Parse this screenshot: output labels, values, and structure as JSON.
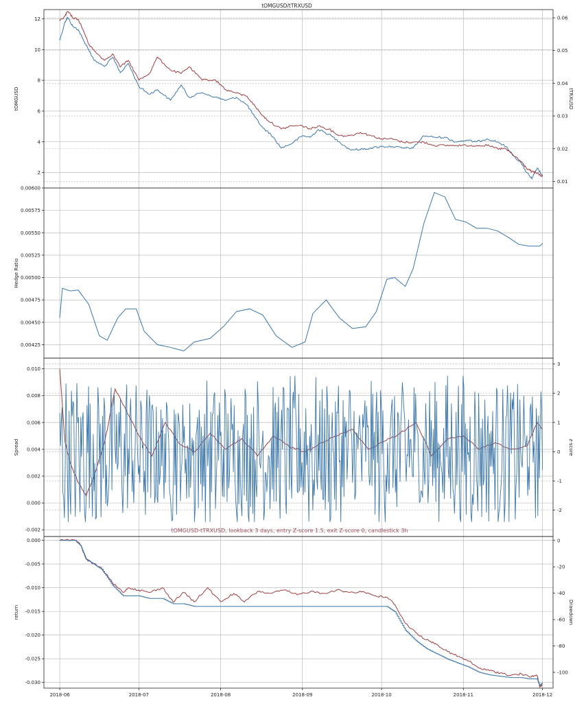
{
  "figure_title": "tOMGUSD/tTRXUSD",
  "colors": {
    "blue": "#3b76a8",
    "red": "#9e3d40",
    "grid": "#b0b0b0"
  },
  "chart_data": [
    {
      "type": "line",
      "title": "tOMGUSD/tTRXUSD",
      "x_range": [
        "2018-06-01",
        "2018-12-01"
      ],
      "xticks": [
        "2018-06",
        "2018-07",
        "2018-08",
        "2018-09",
        "2018-10",
        "2018-11",
        "2018-12"
      ],
      "ylabel": "tOMGUSD",
      "ylabel_right": "tTRXUSD",
      "ylim": [
        1.0,
        12.6
      ],
      "ylim_right": [
        0.008,
        0.0625
      ],
      "yticks": [
        "2",
        "4",
        "6",
        "8",
        "10",
        "12"
      ],
      "yticks_right": [
        "0.01",
        "0.02",
        "0.03",
        "0.04",
        "0.05",
        "0.06"
      ],
      "series": [
        {
          "name": "tOMGUSD",
          "axis": "left",
          "color": "blue",
          "x": [
            "2018-06-01",
            "2018-06-03",
            "2018-06-04",
            "2018-06-06",
            "2018-06-08",
            "2018-06-10",
            "2018-06-12",
            "2018-06-14",
            "2018-06-18",
            "2018-06-21",
            "2018-06-24",
            "2018-06-27",
            "2018-07-01",
            "2018-07-05",
            "2018-07-08",
            "2018-07-13",
            "2018-07-17",
            "2018-07-20",
            "2018-07-25",
            "2018-07-30",
            "2018-08-03",
            "2018-08-07",
            "2018-08-11",
            "2018-08-14",
            "2018-08-17",
            "2018-08-20",
            "2018-08-24",
            "2018-08-28",
            "2018-09-01",
            "2018-09-04",
            "2018-09-07",
            "2018-09-11",
            "2018-09-15",
            "2018-09-19",
            "2018-09-23",
            "2018-09-27",
            "2018-10-01",
            "2018-10-05",
            "2018-10-09",
            "2018-10-13",
            "2018-10-17",
            "2018-10-21",
            "2018-10-25",
            "2018-10-29",
            "2018-11-02",
            "2018-11-06",
            "2018-11-10",
            "2018-11-14",
            "2018-11-17",
            "2018-11-20",
            "2018-11-23",
            "2018-11-25",
            "2018-11-27",
            "2018-11-29",
            "2018-12-01"
          ],
          "y": [
            10.6,
            11.8,
            12.1,
            11.5,
            11.3,
            10.6,
            10.0,
            9.3,
            8.9,
            9.5,
            8.5,
            9.1,
            7.6,
            7.1,
            7.4,
            6.7,
            7.7,
            6.9,
            7.2,
            6.9,
            6.7,
            6.9,
            6.4,
            5.6,
            4.9,
            4.5,
            3.6,
            3.9,
            4.4,
            4.3,
            4.8,
            4.5,
            4.0,
            3.5,
            3.5,
            3.6,
            3.7,
            3.7,
            3.6,
            3.6,
            4.4,
            4.3,
            4.3,
            4.0,
            4.1,
            4.0,
            4.2,
            4.0,
            3.7,
            3.1,
            2.6,
            2.0,
            1.6,
            2.3,
            1.8
          ]
        },
        {
          "name": "tTRXUSD",
          "axis": "right",
          "color": "red",
          "x": [
            "2018-06-01",
            "2018-06-03",
            "2018-06-04",
            "2018-06-06",
            "2018-06-08",
            "2018-06-10",
            "2018-06-12",
            "2018-06-14",
            "2018-06-18",
            "2018-06-21",
            "2018-06-24",
            "2018-06-27",
            "2018-07-01",
            "2018-07-05",
            "2018-07-08",
            "2018-07-13",
            "2018-07-17",
            "2018-07-20",
            "2018-07-25",
            "2018-07-30",
            "2018-08-03",
            "2018-08-07",
            "2018-08-11",
            "2018-08-14",
            "2018-08-17",
            "2018-08-20",
            "2018-08-24",
            "2018-08-28",
            "2018-09-01",
            "2018-09-04",
            "2018-09-07",
            "2018-09-11",
            "2018-09-15",
            "2018-09-19",
            "2018-09-23",
            "2018-09-27",
            "2018-10-01",
            "2018-10-05",
            "2018-10-09",
            "2018-10-13",
            "2018-10-17",
            "2018-10-21",
            "2018-10-25",
            "2018-10-29",
            "2018-11-02",
            "2018-11-06",
            "2018-11-10",
            "2018-11-14",
            "2018-11-17",
            "2018-11-20",
            "2018-11-23",
            "2018-11-25",
            "2018-11-27",
            "2018-11-29",
            "2018-12-01"
          ],
          "y": [
            0.059,
            0.0605,
            0.062,
            0.06,
            0.0595,
            0.056,
            0.052,
            0.05,
            0.047,
            0.049,
            0.045,
            0.047,
            0.041,
            0.043,
            0.048,
            0.044,
            0.043,
            0.045,
            0.041,
            0.041,
            0.038,
            0.037,
            0.036,
            0.033,
            0.03,
            0.028,
            0.026,
            0.027,
            0.027,
            0.026,
            0.027,
            0.026,
            0.024,
            0.024,
            0.025,
            0.024,
            0.023,
            0.023,
            0.022,
            0.022,
            0.022,
            0.021,
            0.021,
            0.021,
            0.021,
            0.021,
            0.021,
            0.02,
            0.02,
            0.018,
            0.016,
            0.014,
            0.013,
            0.0125,
            0.0115
          ]
        }
      ]
    },
    {
      "type": "line",
      "ylabel": "Hedge Ratio",
      "ylim": [
        0.0041,
        0.006
      ],
      "yticks": [
        "0.00425",
        "0.00450",
        "0.00475",
        "0.00500",
        "0.00525",
        "0.00550",
        "0.00575",
        "0.00600"
      ],
      "series": [
        {
          "color": "blue",
          "x": [
            "2018-06-01",
            "2018-06-02",
            "2018-06-05",
            "2018-06-08",
            "2018-06-12",
            "2018-06-16",
            "2018-06-19",
            "2018-06-23",
            "2018-06-26",
            "2018-06-30",
            "2018-07-03",
            "2018-07-08",
            "2018-07-13",
            "2018-07-18",
            "2018-07-22",
            "2018-07-28",
            "2018-08-02",
            "2018-08-07",
            "2018-08-12",
            "2018-08-17",
            "2018-08-22",
            "2018-08-28",
            "2018-09-02",
            "2018-09-05",
            "2018-09-10",
            "2018-09-15",
            "2018-09-20",
            "2018-09-25",
            "2018-09-29",
            "2018-10-03",
            "2018-10-06",
            "2018-10-10",
            "2018-10-13",
            "2018-10-17",
            "2018-10-21",
            "2018-10-25",
            "2018-10-29",
            "2018-11-02",
            "2018-11-06",
            "2018-11-10",
            "2018-11-14",
            "2018-11-18",
            "2018-11-22",
            "2018-11-26",
            "2018-11-30",
            "2018-12-01"
          ],
          "y": [
            0.00455,
            0.00488,
            0.00485,
            0.00486,
            0.0047,
            0.00435,
            0.0043,
            0.00455,
            0.00465,
            0.00465,
            0.0044,
            0.00425,
            0.00422,
            0.00418,
            0.00428,
            0.00432,
            0.00445,
            0.00462,
            0.00465,
            0.00458,
            0.00435,
            0.00422,
            0.00428,
            0.0046,
            0.00475,
            0.00455,
            0.00443,
            0.00445,
            0.00462,
            0.00498,
            0.005,
            0.0049,
            0.0051,
            0.0056,
            0.00595,
            0.0059,
            0.00565,
            0.00562,
            0.00555,
            0.00555,
            0.00552,
            0.00545,
            0.00537,
            0.00535,
            0.00535,
            0.00538
          ]
        }
      ]
    },
    {
      "type": "line",
      "ylabel": "Spread",
      "ylabel_right": "z-score",
      "ylim": [
        -0.0025,
        0.0108
      ],
      "ylim_right": [
        -2.9,
        3.2
      ],
      "yticks": [
        "-0.002",
        "0.000",
        "0.002",
        "0.004",
        "0.006",
        "0.008",
        "0.010"
      ],
      "yticks_right": [
        "-2",
        "-1",
        "0",
        "1",
        "2",
        "3"
      ],
      "series": [
        {
          "name": "Spread",
          "axis": "left",
          "color": "red",
          "x": [
            "2018-06-01",
            "2018-06-03",
            "2018-06-05",
            "2018-06-08",
            "2018-06-11",
            "2018-06-14",
            "2018-06-18",
            "2018-06-22",
            "2018-06-26",
            "2018-07-01",
            "2018-07-06",
            "2018-07-11",
            "2018-07-16",
            "2018-07-22",
            "2018-07-28",
            "2018-08-03",
            "2018-08-09",
            "2018-08-15",
            "2018-08-21",
            "2018-08-27",
            "2018-09-02",
            "2018-09-08",
            "2018-09-14",
            "2018-09-20",
            "2018-09-26",
            "2018-10-02",
            "2018-10-08",
            "2018-10-14",
            "2018-10-20",
            "2018-10-26",
            "2018-11-01",
            "2018-11-07",
            "2018-11-13",
            "2018-11-19",
            "2018-11-25",
            "2018-11-29",
            "2018-12-01"
          ],
          "y": [
            0.01,
            0.0045,
            0.003,
            0.0015,
            0.0005,
            0.002,
            0.0045,
            0.0085,
            0.007,
            0.005,
            0.0035,
            0.006,
            0.0045,
            0.0038,
            0.0052,
            0.004,
            0.0048,
            0.0035,
            0.005,
            0.0042,
            0.0038,
            0.0045,
            0.005,
            0.0055,
            0.004,
            0.0046,
            0.0052,
            0.006,
            0.0035,
            0.0048,
            0.005,
            0.004,
            0.0045,
            0.004,
            0.0042,
            0.006,
            0.0055
          ]
        },
        {
          "name": "z-score",
          "axis": "right",
          "color": "blue",
          "display": "oscillating series, range approx -2.4 to 2.6",
          "x": [
            "2018-06-01",
            "2018-12-01"
          ],
          "y": [
            1.5,
            -1.2
          ]
        }
      ]
    },
    {
      "type": "line",
      "title": "tOMGUSD-tTRXUSD, lookback  3 days, entry Z-score  1.5, exit Z-score  0, candlestick  3h",
      "ylabel": "return",
      "ylabel_right": "Drawdown",
      "ylim": [
        -0.0312,
        0.0008
      ],
      "ylim_right": [
        -112,
        3
      ],
      "yticks": [
        "-0.030",
        "-0.025",
        "-0.020",
        "-0.015",
        "-0.010",
        "-0.005",
        "0.000"
      ],
      "yticks_right": [
        "-100",
        "-80",
        "-60",
        "-40",
        "-20",
        "0"
      ],
      "series": [
        {
          "name": "return",
          "axis": "left",
          "color": "red",
          "x": [
            "2018-06-01",
            "2018-06-07",
            "2018-06-09",
            "2018-06-11",
            "2018-06-14",
            "2018-06-17",
            "2018-06-21",
            "2018-06-25",
            "2018-06-27",
            "2018-07-01",
            "2018-07-05",
            "2018-07-10",
            "2018-07-14",
            "2018-07-18",
            "2018-07-22",
            "2018-07-27",
            "2018-08-01",
            "2018-08-06",
            "2018-08-10",
            "2018-08-15",
            "2018-08-20",
            "2018-08-25",
            "2018-08-30",
            "2018-09-04",
            "2018-09-09",
            "2018-09-14",
            "2018-09-19",
            "2018-09-24",
            "2018-09-29",
            "2018-10-03",
            "2018-10-06",
            "2018-10-10",
            "2018-10-14",
            "2018-10-18",
            "2018-10-22",
            "2018-10-26",
            "2018-10-30",
            "2018-11-03",
            "2018-11-07",
            "2018-11-11",
            "2018-11-15",
            "2018-11-19",
            "2018-11-23",
            "2018-11-26",
            "2018-11-29",
            "2018-11-30",
            "2018-12-01"
          ],
          "y": [
            0.0,
            0.0,
            -0.001,
            -0.004,
            -0.005,
            -0.006,
            -0.009,
            -0.011,
            -0.01,
            -0.0105,
            -0.011,
            -0.01,
            -0.013,
            -0.011,
            -0.013,
            -0.01,
            -0.013,
            -0.0112,
            -0.013,
            -0.0108,
            -0.0112,
            -0.0105,
            -0.0115,
            -0.0108,
            -0.0112,
            -0.0105,
            -0.011,
            -0.0108,
            -0.0118,
            -0.012,
            -0.0135,
            -0.0175,
            -0.0195,
            -0.021,
            -0.022,
            -0.0235,
            -0.0245,
            -0.0255,
            -0.027,
            -0.0275,
            -0.028,
            -0.0285,
            -0.0282,
            -0.0288,
            -0.0285,
            -0.031,
            -0.0305
          ]
        },
        {
          "name": "Drawdown",
          "axis": "right",
          "color": "blue",
          "x": [
            "2018-06-01",
            "2018-06-07",
            "2018-06-09",
            "2018-06-11",
            "2018-06-14",
            "2018-06-17",
            "2018-06-21",
            "2018-06-25",
            "2018-06-27",
            "2018-07-01",
            "2018-07-05",
            "2018-07-10",
            "2018-07-14",
            "2018-07-18",
            "2018-07-22",
            "2018-07-27",
            "2018-08-01",
            "2018-08-06",
            "2018-08-10",
            "2018-08-15",
            "2018-08-20",
            "2018-08-25",
            "2018-08-30",
            "2018-09-04",
            "2018-09-09",
            "2018-09-14",
            "2018-09-19",
            "2018-09-24",
            "2018-09-29",
            "2018-10-03",
            "2018-10-06",
            "2018-10-10",
            "2018-10-14",
            "2018-10-18",
            "2018-10-22",
            "2018-10-26",
            "2018-10-30",
            "2018-11-03",
            "2018-11-07",
            "2018-11-11",
            "2018-11-15",
            "2018-11-19",
            "2018-11-23",
            "2018-11-26",
            "2018-11-29",
            "2018-11-30",
            "2018-12-01"
          ],
          "y": [
            0,
            0,
            -4,
            -14,
            -18,
            -22,
            -34,
            -42,
            -42,
            -42,
            -44,
            -44,
            -48,
            -48,
            -50,
            -50,
            -50,
            -50,
            -50,
            -50,
            -50,
            -50,
            -50,
            -50,
            -50,
            -50,
            -50,
            -50,
            -50,
            -50,
            -54,
            -68,
            -76,
            -82,
            -86,
            -90,
            -93,
            -96,
            -100,
            -102,
            -103,
            -104,
            -104,
            -105,
            -105,
            -110,
            -108
          ]
        }
      ]
    }
  ]
}
